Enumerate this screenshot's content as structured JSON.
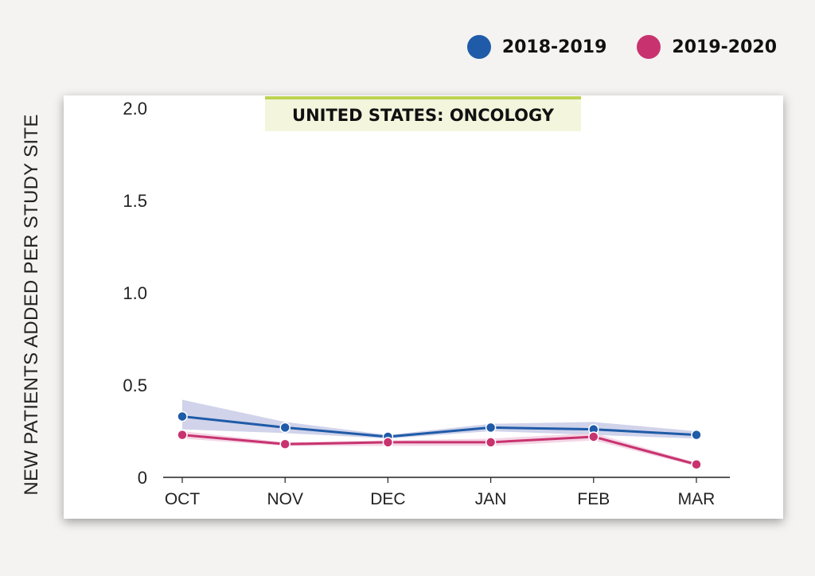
{
  "legend": [
    {
      "label": "2018-2019",
      "color": "#1f5ba8"
    },
    {
      "label": "2019-2020",
      "color": "#c8336f"
    }
  ],
  "chart_data": {
    "type": "line",
    "title": "UNITED STATES: ONCOLOGY",
    "ylabel": "NEW PATIENTS ADDED PER STUDY SITE",
    "xlabel": "",
    "categories": [
      "OCT",
      "NOV",
      "DEC",
      "JAN",
      "FEB",
      "MAR"
    ],
    "ylim": [
      0,
      2.0
    ],
    "yticks": [
      "0",
      "0.5",
      "1.0",
      "1.5",
      "2.0"
    ],
    "grid": false,
    "legend_position": "top-right",
    "series": [
      {
        "name": "2018-2019",
        "color": "#1f5ba8",
        "band_color": "#c8cbe6",
        "values": [
          0.33,
          0.27,
          0.22,
          0.27,
          0.26,
          0.23
        ],
        "lower": [
          0.26,
          0.24,
          0.21,
          0.25,
          0.23,
          0.21
        ],
        "upper": [
          0.42,
          0.3,
          0.23,
          0.29,
          0.3,
          0.25
        ]
      },
      {
        "name": "2019-2020",
        "color": "#c8336f",
        "band_color": "#f2cfe0",
        "values": [
          0.23,
          0.18,
          0.19,
          0.19,
          0.22,
          0.07
        ],
        "lower": [
          0.21,
          0.17,
          0.17,
          0.17,
          0.2,
          0.06
        ],
        "upper": [
          0.25,
          0.19,
          0.2,
          0.21,
          0.24,
          0.08
        ]
      }
    ]
  }
}
